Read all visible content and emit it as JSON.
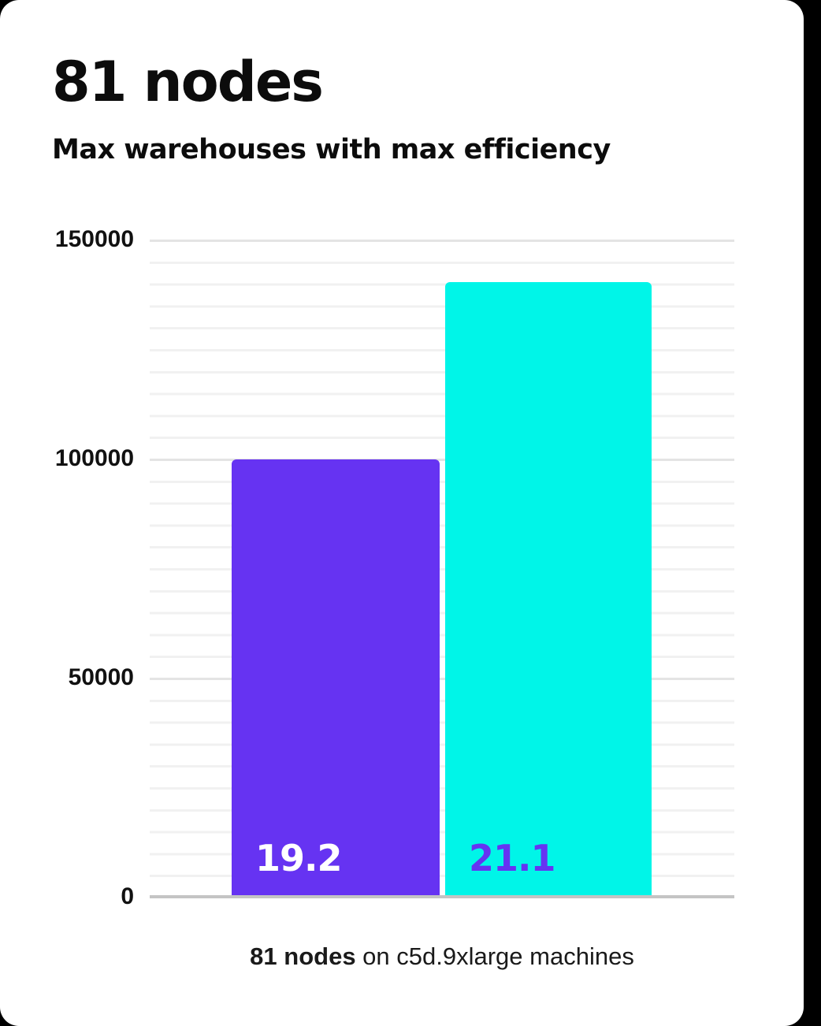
{
  "header": {
    "title": "81 nodes",
    "subtitle": "Max warehouses with max efficiency"
  },
  "caption": {
    "bold": "81 nodes",
    "rest": " on c5d.9xlarge machines"
  },
  "colors": {
    "bar_purple": "#6633f2",
    "bar_cyan": "#00f5e8",
    "label_on_purple": "#ffffff",
    "label_on_cyan": "#6633f2",
    "axis_text": "#111111",
    "baseline": "#c4c4c4",
    "grid_major": "#e4e4e4",
    "grid_minor": "#f1f1f1",
    "card_background": "#ffffff"
  },
  "chart_data": {
    "type": "bar",
    "title": "81 nodes",
    "subtitle": "Max warehouses with max efficiency",
    "caption": "81 nodes on c5d.9xlarge machines",
    "xlabel": "",
    "ylabel": "",
    "ylim": [
      0,
      150000
    ],
    "y_ticks": [
      0,
      50000,
      100000,
      150000
    ],
    "grid": {
      "visible": true,
      "minor_step": 5000,
      "major_step": 50000
    },
    "legend": "none",
    "bars": [
      {
        "label": "19.2",
        "value": 99400,
        "color": "#6633f2",
        "label_color": "#ffffff"
      },
      {
        "label": "21.1",
        "value": 140000,
        "color": "#00f5e8",
        "label_color": "#6633f2"
      }
    ]
  }
}
